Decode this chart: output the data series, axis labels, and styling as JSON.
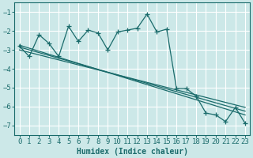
{
  "xlabel": "Humidex (Indice chaleur)",
  "bg_color": "#cce8e8",
  "grid_color": "#aad4d4",
  "line_color": "#1a6b6b",
  "xlim": [
    -0.5,
    23.5
  ],
  "ylim": [
    -7.5,
    -0.5
  ],
  "xticks": [
    0,
    1,
    2,
    3,
    4,
    5,
    6,
    7,
    8,
    9,
    10,
    11,
    12,
    13,
    14,
    15,
    16,
    17,
    18,
    19,
    20,
    21,
    22,
    23
  ],
  "yticks": [
    -7,
    -6,
    -5,
    -4,
    -3,
    -2,
    -1
  ],
  "main_x": [
    0,
    1,
    2,
    3,
    4,
    5,
    6,
    7,
    8,
    9,
    10,
    11,
    12,
    13,
    14,
    15,
    16,
    17,
    18,
    19,
    20,
    21,
    22,
    23
  ],
  "main_y": [
    -2.8,
    -3.35,
    -2.2,
    -2.65,
    -3.35,
    -1.75,
    -2.55,
    -1.95,
    -2.1,
    -3.0,
    -2.05,
    -1.95,
    -1.85,
    -1.1,
    -2.05,
    -1.9,
    -5.05,
    -5.05,
    -5.45,
    -6.35,
    -6.45,
    -6.8,
    -6.05,
    -6.9
  ],
  "reg_lines": [
    {
      "x": [
        0,
        23
      ],
      "y": [
        -2.75,
        -6.45
      ]
    },
    {
      "x": [
        0,
        23
      ],
      "y": [
        -2.85,
        -6.25
      ]
    },
    {
      "x": [
        0,
        23
      ],
      "y": [
        -3.0,
        -6.05
      ]
    }
  ],
  "tick_fontsize": 6.5,
  "xlabel_fontsize": 7.0
}
